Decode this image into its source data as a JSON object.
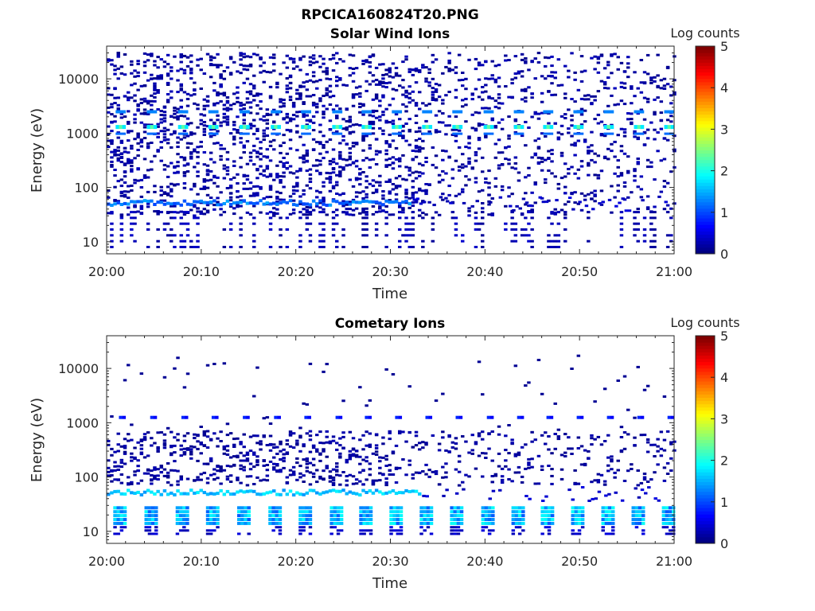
{
  "figure_title": "RPCICA160824T20.PNG",
  "chart_data": [
    {
      "type": "heatmap",
      "title": "Solar Wind Ions",
      "xlabel": "Time",
      "ylabel": "Energy (eV)",
      "x_ticks": [
        "20:00",
        "20:10",
        "20:20",
        "20:30",
        "20:40",
        "20:50",
        "21:00"
      ],
      "xlim": [
        "20:00",
        "21:00"
      ],
      "y_scale": "log",
      "y_ticks": [
        "10",
        "100",
        "1000",
        "10000"
      ],
      "ylim": [
        6,
        40000
      ],
      "colorbar": {
        "label": "Log counts",
        "ticks": [
          "0",
          "1",
          "2",
          "3",
          "4",
          "5"
        ],
        "range": [
          0,
          5
        ],
        "colormap": "jet"
      },
      "features": {
        "energy_band_ev": 52,
        "band_level": 1.2,
        "band_end_minute": 32,
        "burst_energy_ev": 1300,
        "burst_level": 2.3,
        "burst_minutes": [
          1.3,
          4.6,
          7.9,
          11.1,
          14.4,
          17.7,
          20.9,
          24.2,
          27.3,
          30.5,
          33.7,
          36.9,
          40.2,
          43.4,
          46.5,
          49.7,
          52.9,
          56.1,
          59.3
        ],
        "low_energy_columns_ev": [
          20,
          30
        ],
        "background": "scattered single counts 30 eV – 30 keV"
      }
    },
    {
      "type": "heatmap",
      "title": "Cometary Ions",
      "xlabel": "Time",
      "ylabel": "Energy (eV)",
      "x_ticks": [
        "20:00",
        "20:10",
        "20:20",
        "20:30",
        "20:40",
        "20:50",
        "21:00"
      ],
      "xlim": [
        "20:00",
        "21:00"
      ],
      "y_scale": "log",
      "y_ticks": [
        "10",
        "100",
        "1000",
        "10000"
      ],
      "ylim": [
        6,
        40000
      ],
      "colorbar": {
        "label": "Log counts",
        "ticks": [
          "0",
          "1",
          "2",
          "3",
          "4",
          "5"
        ],
        "range": [
          0,
          5
        ],
        "colormap": "jet"
      },
      "features": {
        "energy_band_ev": 52,
        "band_level": 1.6,
        "band_end_minute": 33,
        "pulse_energy_range_ev": [
          14,
          32
        ],
        "pulse_level": 1.5,
        "pulse_minutes": [
          1.3,
          4.6,
          7.9,
          11.1,
          14.4,
          17.7,
          20.9,
          24.2,
          27.3,
          30.5,
          33.7,
          36.9,
          40.2,
          43.4,
          46.5,
          49.7,
          52.9,
          56.1,
          59.3
        ],
        "line_energy_ev": 1250,
        "line_level": 0.6,
        "background": "sparse single counts 80 eV – 20 keV"
      }
    }
  ]
}
